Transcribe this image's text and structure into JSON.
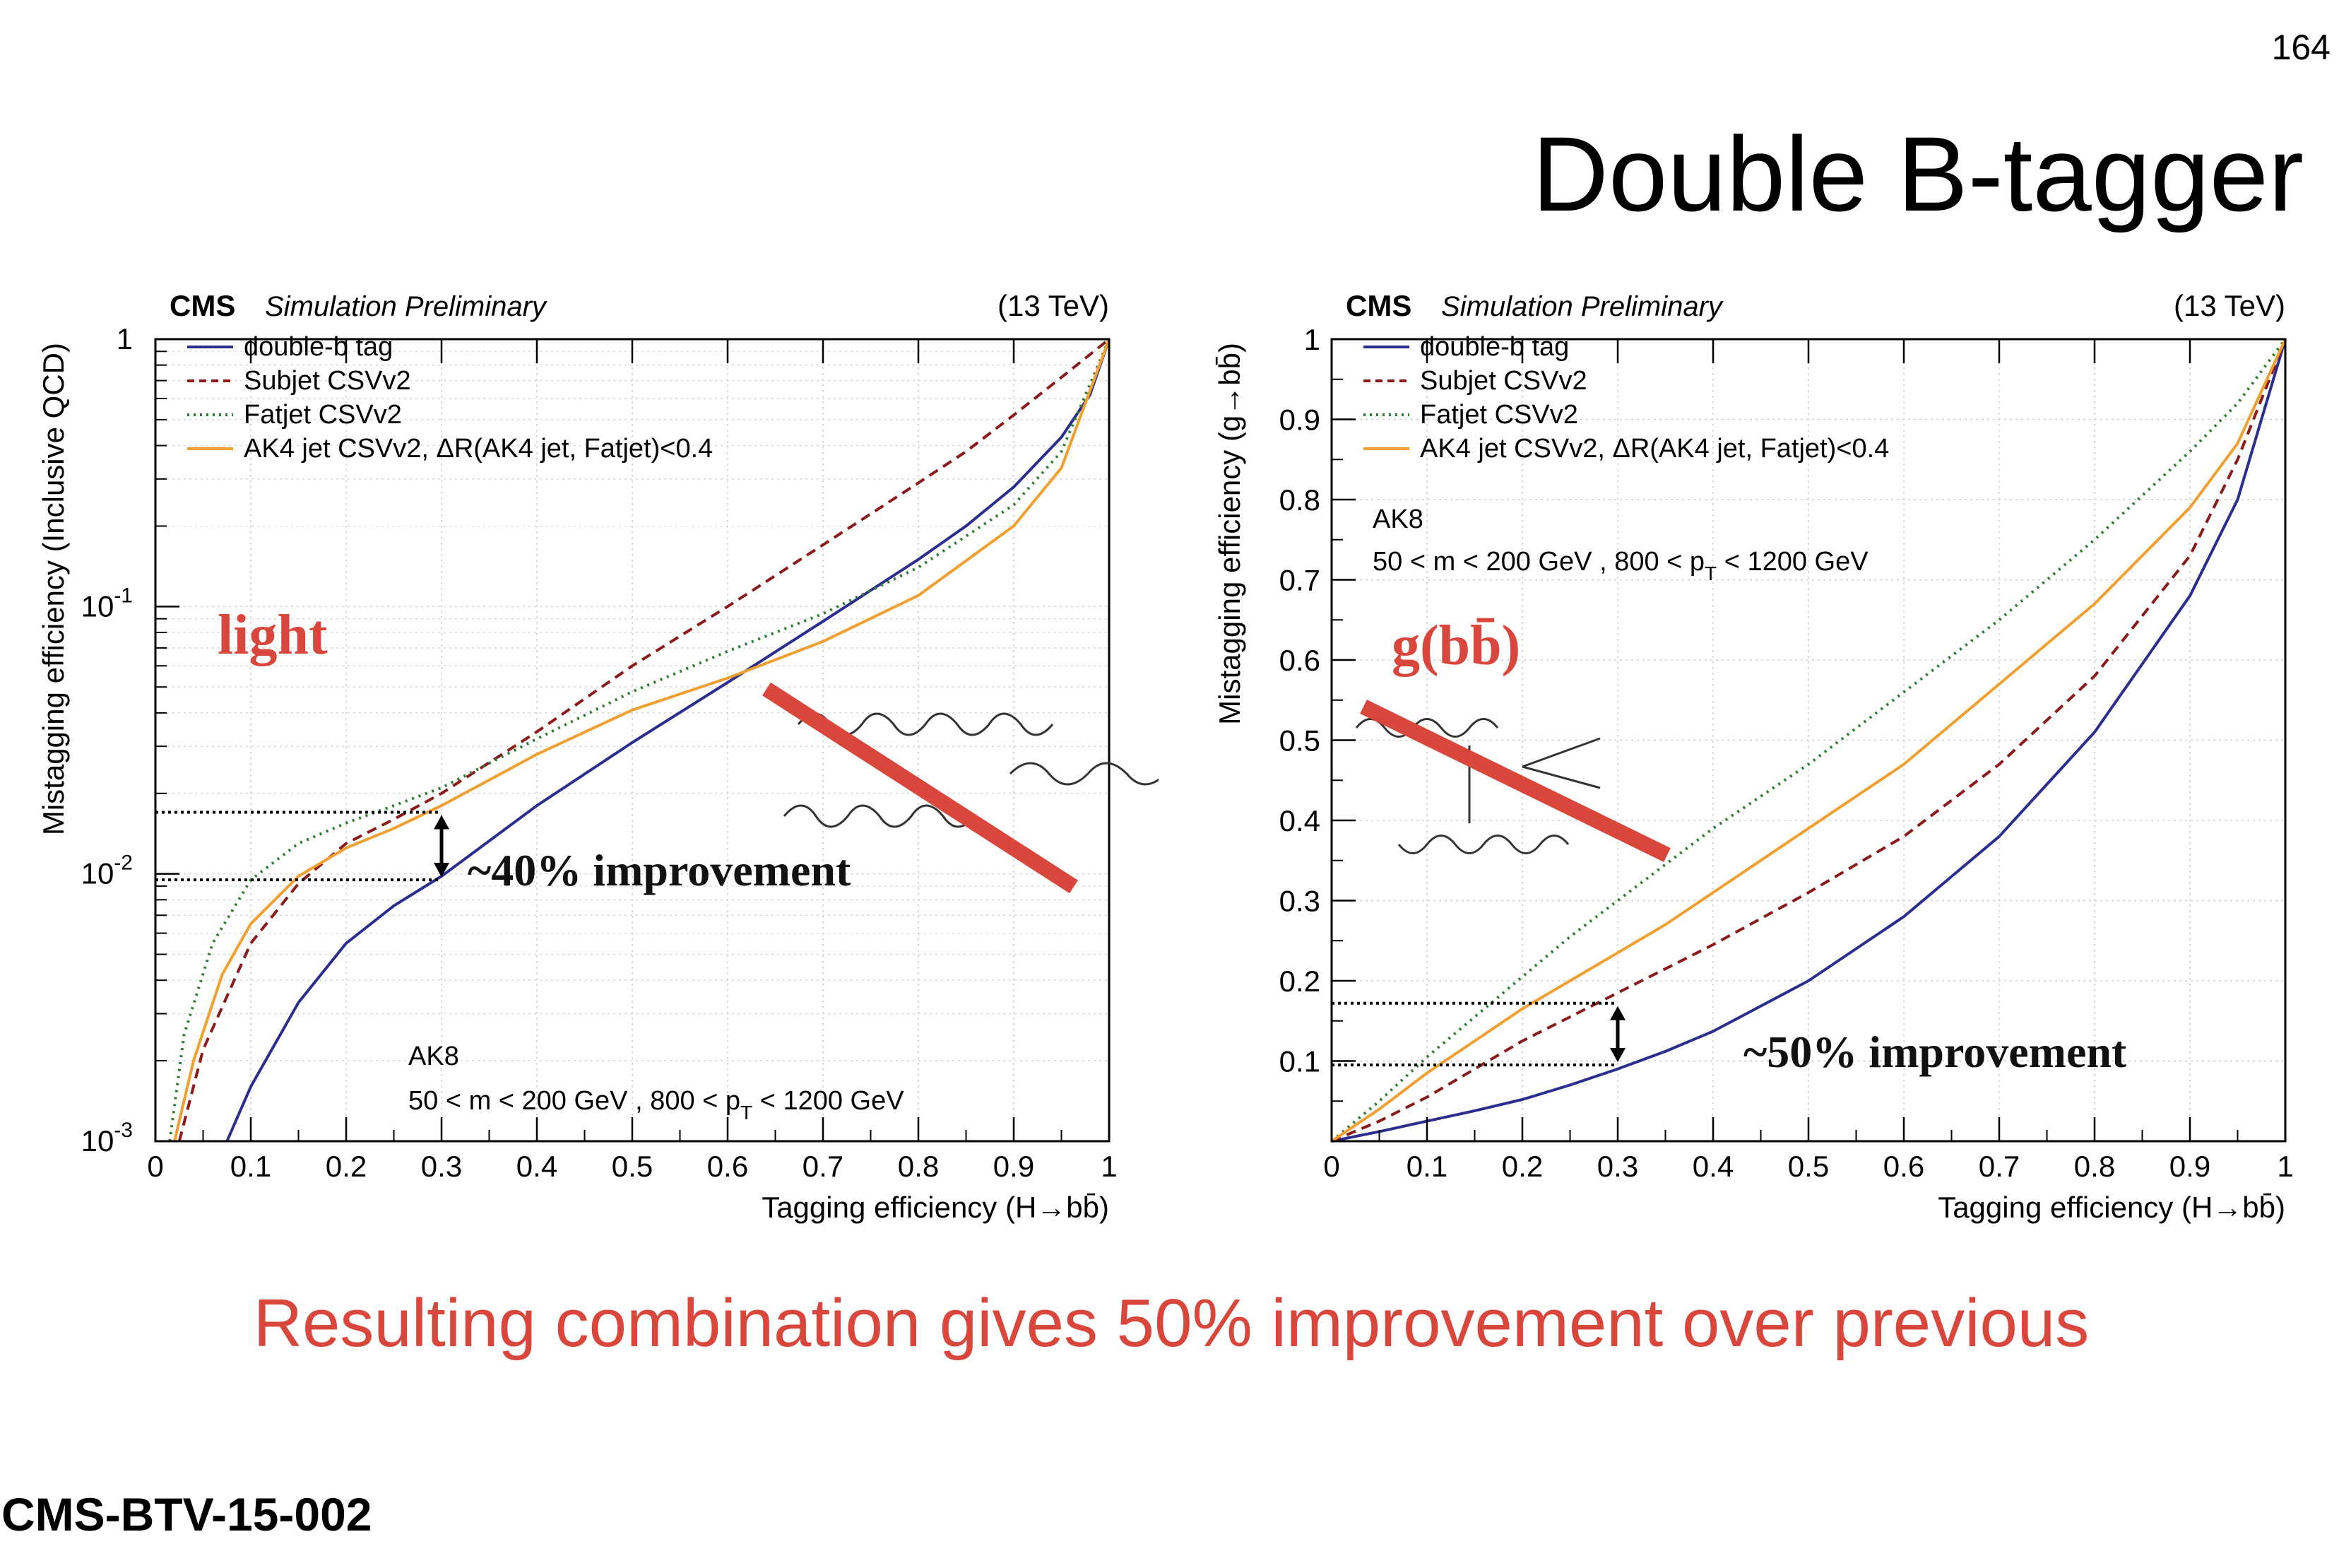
{
  "slide": {
    "page_number": "164",
    "title": "Double B-tagger",
    "conclusion": "Resulting combination gives 50% improvement over previous",
    "reference": "CMS-BTV-15-002"
  },
  "colors": {
    "double_b": "#2b2e8f",
    "subjet": "#8b1a1a",
    "fatjet": "#2e7d32",
    "ak4": "#f0a030",
    "annotation_red": "#d9463c"
  },
  "chart_data": [
    {
      "type": "line",
      "header_left_bold": "CMS",
      "header_left_italic": "Simulation Preliminary",
      "header_right": "(13 TeV)",
      "xlabel": "Tagging efficiency (H→bb̄)",
      "ylabel": "Mistagging efficiency (Inclusive QCD)",
      "xlim": [
        0,
        1
      ],
      "ylim": [
        0.001,
        1
      ],
      "yscale": "log",
      "grid": true,
      "legend_position": "top-left",
      "x_ticks": [
        "0",
        "0.1",
        "0.2",
        "0.3",
        "0.4",
        "0.5",
        "0.6",
        "0.7",
        "0.8",
        "0.9",
        "1"
      ],
      "y_ticks": [
        {
          "value": 0.001,
          "base": "10",
          "exp": "-3"
        },
        {
          "value": 0.01,
          "base": "10",
          "exp": "-2"
        },
        {
          "value": 0.1,
          "base": "10",
          "exp": "-1"
        },
        {
          "value": 1,
          "base": "1",
          "exp": ""
        }
      ],
      "series": [
        {
          "name": "double-b tag",
          "color": "#2b2e8f",
          "dash": "solid",
          "x": [
            0.075,
            0.1,
            0.15,
            0.2,
            0.25,
            0.3,
            0.4,
            0.5,
            0.6,
            0.7,
            0.8,
            0.85,
            0.9,
            0.95,
            0.98,
            1.0
          ],
          "y": [
            0.001,
            0.0016,
            0.0033,
            0.0055,
            0.0076,
            0.0098,
            0.018,
            0.031,
            0.052,
            0.088,
            0.15,
            0.2,
            0.28,
            0.43,
            0.62,
            1.0
          ]
        },
        {
          "name": "Subjet CSVv2",
          "color": "#8b1a1a",
          "dash": "dashed",
          "x": [
            0.025,
            0.05,
            0.1,
            0.15,
            0.2,
            0.25,
            0.3,
            0.4,
            0.5,
            0.6,
            0.7,
            0.8,
            0.85,
            0.9,
            0.95,
            1.0
          ],
          "y": [
            0.001,
            0.0022,
            0.0055,
            0.0092,
            0.013,
            0.016,
            0.02,
            0.034,
            0.06,
            0.1,
            0.17,
            0.29,
            0.38,
            0.52,
            0.72,
            1.0
          ]
        },
        {
          "name": "Fatjet CSVv2",
          "color": "#2e7d32",
          "dash": "dotted",
          "x": [
            0.015,
            0.03,
            0.06,
            0.1,
            0.15,
            0.2,
            0.25,
            0.3,
            0.4,
            0.5,
            0.6,
            0.7,
            0.8,
            0.9,
            0.95,
            1.0
          ],
          "y": [
            0.001,
            0.0025,
            0.0055,
            0.0095,
            0.013,
            0.0155,
            0.018,
            0.021,
            0.032,
            0.048,
            0.068,
            0.094,
            0.14,
            0.24,
            0.38,
            1.0
          ]
        },
        {
          "name": "AK4 jet CSVv2, ΔR(AK4 jet, Fatjet)<0.4",
          "color": "#f0a030",
          "dash": "solid",
          "x": [
            0.02,
            0.04,
            0.07,
            0.1,
            0.15,
            0.2,
            0.25,
            0.3,
            0.4,
            0.5,
            0.6,
            0.7,
            0.8,
            0.9,
            0.95,
            1.0
          ],
          "y": [
            0.001,
            0.002,
            0.0042,
            0.0065,
            0.0098,
            0.0125,
            0.0148,
            0.018,
            0.028,
            0.041,
            0.054,
            0.074,
            0.11,
            0.2,
            0.33,
            1.0
          ]
        }
      ],
      "annotations": {
        "text_ak8": "AK8",
        "text_cut_pre": "50 < m < 200 GeV , 800 < p",
        "text_cut_sub": "T",
        "text_cut_post": " < 1200 GeV",
        "class_label": "light",
        "improvement": "~40% improvement",
        "reference_lines": {
          "x": 0.3,
          "y_upper": 0.017,
          "y_lower": 0.0095
        }
      }
    },
    {
      "type": "line",
      "header_left_bold": "CMS",
      "header_left_italic": "Simulation Preliminary",
      "header_right": "(13 TeV)",
      "xlabel": "Tagging efficiency (H→bb̄)",
      "ylabel": "Mistagging efficiency (g→bb̄)",
      "xlim": [
        0,
        1
      ],
      "ylim": [
        0,
        1
      ],
      "yscale": "linear",
      "grid": true,
      "legend_position": "top-left",
      "x_ticks": [
        "0",
        "0.1",
        "0.2",
        "0.3",
        "0.4",
        "0.5",
        "0.6",
        "0.7",
        "0.8",
        "0.9",
        "1"
      ],
      "y_ticks": [
        "0.1",
        "0.2",
        "0.3",
        "0.4",
        "0.5",
        "0.6",
        "0.7",
        "0.8",
        "0.9",
        "1"
      ],
      "series": [
        {
          "name": "double-b tag",
          "color": "#2b2e8f",
          "dash": "solid",
          "x": [
            0,
            0.05,
            0.1,
            0.15,
            0.2,
            0.25,
            0.3,
            0.35,
            0.4,
            0.5,
            0.6,
            0.7,
            0.8,
            0.9,
            0.95,
            1.0
          ],
          "y": [
            0,
            0.012,
            0.025,
            0.038,
            0.052,
            0.07,
            0.09,
            0.112,
            0.137,
            0.2,
            0.28,
            0.38,
            0.51,
            0.68,
            0.8,
            1.0
          ]
        },
        {
          "name": "Subjet CSVv2",
          "color": "#8b1a1a",
          "dash": "dashed",
          "x": [
            0,
            0.05,
            0.1,
            0.15,
            0.2,
            0.25,
            0.3,
            0.35,
            0.4,
            0.5,
            0.6,
            0.7,
            0.8,
            0.9,
            0.95,
            1.0
          ],
          "y": [
            0,
            0.025,
            0.055,
            0.09,
            0.125,
            0.155,
            0.185,
            0.215,
            0.245,
            0.31,
            0.38,
            0.47,
            0.58,
            0.73,
            0.85,
            1.0
          ]
        },
        {
          "name": "Fatjet CSVv2",
          "color": "#2e7d32",
          "dash": "dotted",
          "x": [
            0,
            0.05,
            0.1,
            0.15,
            0.2,
            0.25,
            0.3,
            0.35,
            0.4,
            0.5,
            0.6,
            0.7,
            0.8,
            0.9,
            0.95,
            1.0
          ],
          "y": [
            0,
            0.05,
            0.105,
            0.155,
            0.205,
            0.255,
            0.3,
            0.345,
            0.39,
            0.47,
            0.56,
            0.65,
            0.75,
            0.86,
            0.92,
            1.0
          ]
        },
        {
          "name": "AK4 jet CSVv2, ΔR(AK4 jet, Fatjet)<0.4",
          "color": "#f0a030",
          "dash": "solid",
          "x": [
            0,
            0.05,
            0.1,
            0.15,
            0.2,
            0.25,
            0.3,
            0.35,
            0.4,
            0.5,
            0.6,
            0.7,
            0.8,
            0.9,
            0.95,
            1.0
          ],
          "y": [
            0,
            0.04,
            0.085,
            0.125,
            0.165,
            0.2,
            0.235,
            0.27,
            0.31,
            0.39,
            0.47,
            0.57,
            0.67,
            0.79,
            0.87,
            1.0
          ]
        }
      ],
      "annotations": {
        "text_ak8": "AK8",
        "text_cut_pre": "50 < m < 200 GeV , 800 < p",
        "text_cut_sub": "T",
        "text_cut_post": " < 1200 GeV",
        "class_label": "g(bb̄)",
        "improvement": "~50% improvement",
        "reference_lines": {
          "x": 0.3,
          "y_upper": 0.172,
          "y_lower": 0.095
        }
      }
    }
  ]
}
